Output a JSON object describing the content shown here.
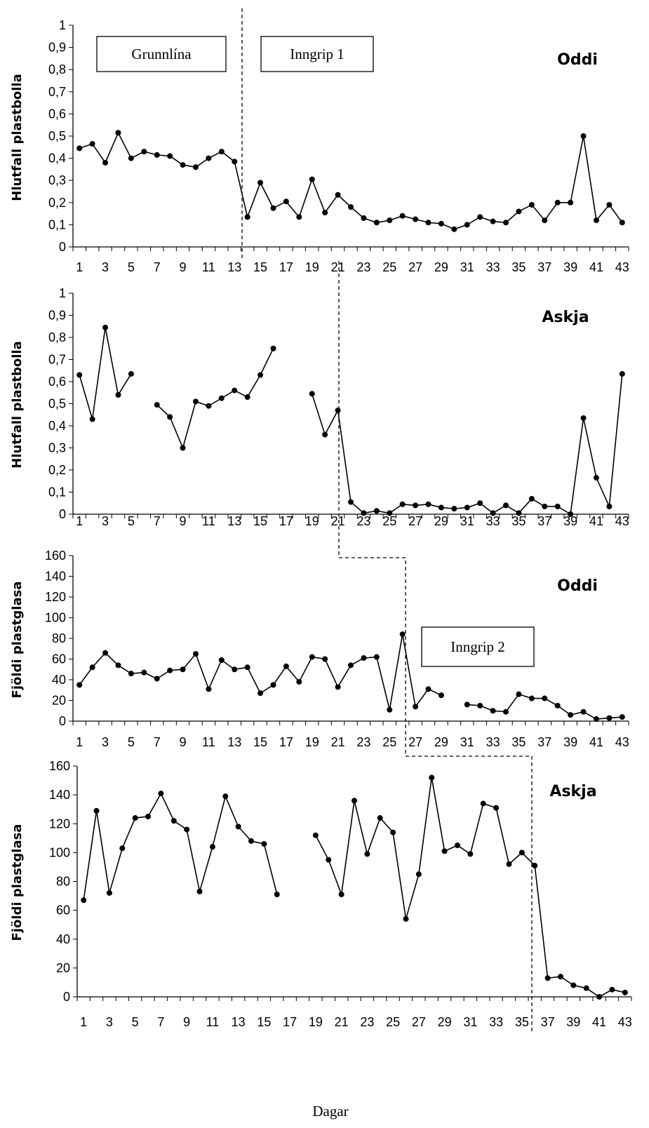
{
  "chart_data": [
    {
      "type": "line",
      "title": "Oddi",
      "xlabel": "",
      "ylabel": "Hlutfall plastbolla",
      "ylim": [
        0,
        1
      ],
      "yticks": [
        0,
        0.1,
        0.2,
        0.3,
        0.4,
        0.5,
        0.6,
        0.7,
        0.8,
        0.9,
        1
      ],
      "ytick_labels": [
        "0",
        "0,1",
        "0,2",
        "0,3",
        "0,4",
        "0,5",
        "0,6",
        "0,7",
        "0,8",
        "0,9",
        "1"
      ],
      "xticks": [
        1,
        3,
        5,
        7,
        9,
        11,
        13,
        15,
        17,
        19,
        21,
        23,
        25,
        27,
        29,
        31,
        33,
        35,
        37,
        39,
        41,
        43
      ],
      "grid": false,
      "series": [
        {
          "values": [
            0.445,
            0.465,
            0.38,
            0.515,
            0.4,
            0.43,
            0.415,
            0.41,
            0.37,
            0.36,
            0.4,
            0.43,
            0.385,
            0.135,
            0.29,
            0.175,
            0.205,
            0.135,
            0.305,
            0.155,
            0.235,
            0.18,
            0.13,
            0.11,
            0.12,
            0.14,
            0.125,
            0.11,
            0.105,
            0.08,
            0.1,
            0.135,
            0.115,
            0.11,
            0.16,
            0.19,
            0.12,
            0.2,
            0.2,
            0.5,
            0.12,
            0.19,
            0.11
          ]
        }
      ]
    },
    {
      "type": "line",
      "title": "Askja",
      "xlabel": "",
      "ylabel": "Hlutfall plastbolla",
      "ylim": [
        0,
        1
      ],
      "yticks": [
        0,
        0.1,
        0.2,
        0.3,
        0.4,
        0.5,
        0.6,
        0.7,
        0.8,
        0.9,
        1
      ],
      "ytick_labels": [
        "0",
        "0,1",
        "0,2",
        "0,3",
        "0,4",
        "0,5",
        "0,6",
        "0,7",
        "0,8",
        "0,9",
        "1"
      ],
      "xticks": [
        1,
        3,
        5,
        7,
        9,
        11,
        13,
        15,
        17,
        19,
        21,
        23,
        25,
        27,
        29,
        31,
        33,
        35,
        37,
        39,
        41,
        43
      ],
      "grid": false,
      "series": [
        {
          "values": [
            0.63,
            0.43,
            0.845,
            0.54,
            0.635,
            null,
            0.495,
            0.44,
            0.3,
            0.51,
            0.49,
            0.525,
            0.56,
            0.53,
            0.63,
            0.75,
            null,
            null,
            0.545,
            0.36,
            0.47,
            0.055,
            0.005,
            0.015,
            0.005,
            0.045,
            0.04,
            0.045,
            0.03,
            0.025,
            0.03,
            0.05,
            0.005,
            0.04,
            0.005,
            0.07,
            0.035,
            0.035,
            0.0,
            0.435,
            0.165,
            0.035,
            0.635
          ]
        }
      ]
    },
    {
      "type": "line",
      "title": "Oddi",
      "xlabel": "",
      "ylabel": "Fjöldi plastglasa",
      "ylim": [
        0,
        160
      ],
      "yticks": [
        0,
        20,
        40,
        60,
        80,
        100,
        120,
        140,
        160
      ],
      "ytick_labels": [
        "0",
        "20",
        "40",
        "60",
        "80",
        "100",
        "120",
        "140",
        "160"
      ],
      "xticks": [
        1,
        3,
        5,
        7,
        9,
        11,
        13,
        15,
        17,
        19,
        21,
        23,
        25,
        27,
        29,
        31,
        33,
        35,
        37,
        39,
        41,
        43
      ],
      "grid": false,
      "series": [
        {
          "values": [
            35,
            52,
            66,
            54,
            46,
            47,
            41,
            49,
            50,
            65,
            31,
            59,
            50,
            52,
            27,
            35,
            53,
            38,
            62,
            60,
            33,
            54,
            61,
            62,
            11,
            84,
            14,
            31,
            25,
            null,
            16,
            15,
            10,
            9,
            26,
            22,
            22,
            15,
            6,
            9,
            2,
            3,
            4
          ]
        }
      ]
    },
    {
      "type": "line",
      "title": "Askja",
      "xlabel": "Dagar",
      "ylabel": "Fjöldi plastglasa",
      "ylim": [
        0,
        160
      ],
      "yticks": [
        0,
        20,
        40,
        60,
        80,
        100,
        120,
        140,
        160
      ],
      "ytick_labels": [
        "0",
        "20",
        "40",
        "60",
        "80",
        "100",
        "120",
        "140",
        "160"
      ],
      "xticks": [
        1,
        3,
        5,
        7,
        9,
        11,
        13,
        15,
        17,
        19,
        21,
        23,
        25,
        27,
        29,
        31,
        33,
        35,
        37,
        39,
        41,
        43
      ],
      "grid": false,
      "series": [
        {
          "values": [
            67,
            129,
            72,
            103,
            124,
            125,
            141,
            122,
            116,
            73,
            104,
            139,
            118,
            108,
            106,
            71,
            null,
            null,
            112,
            95,
            71,
            136,
            99,
            124,
            114,
            54,
            85,
            152,
            101,
            105,
            99,
            134,
            131,
            92,
            100,
            91,
            13,
            14,
            8,
            6,
            0,
            5,
            3
          ]
        }
      ]
    }
  ],
  "annotations": {
    "baseline_label": "Grunnlína",
    "intervention1_label": "Inngrip 1",
    "intervention2_label": "Inngrip 2"
  }
}
